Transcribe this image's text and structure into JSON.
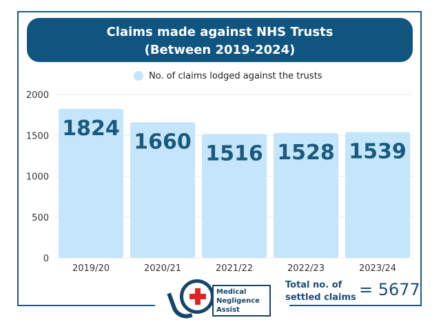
{
  "colors": {
    "title_bg": "#0f5580",
    "bar": "#c4e5fa",
    "bar_label": "#1a5a80",
    "frame": "#1a5a80",
    "axis_text": "#333333"
  },
  "footer": {
    "logo_text": [
      "Medical",
      "Negligence",
      "Assist"
    ],
    "total_label_line1": "Total no. of",
    "total_label_line2": "settled claims",
    "total_value": "= 5677"
  },
  "chart_data": {
    "type": "bar",
    "title": "Claims made against NHS Trusts",
    "subtitle": "(Between 2019-2024)",
    "categories": [
      "2019/20",
      "2020/21",
      "2021/22",
      "2022/23",
      "2023/24"
    ],
    "series": [
      {
        "name": "No. of claims lodged against the trusts",
        "values": [
          1824,
          1660,
          1516,
          1528,
          1539
        ]
      }
    ],
    "yticks": [
      0,
      500,
      1000,
      1500,
      2000
    ],
    "ylim": [
      0,
      2000
    ],
    "grid": true,
    "legend": "top-center",
    "data_labels": true
  }
}
